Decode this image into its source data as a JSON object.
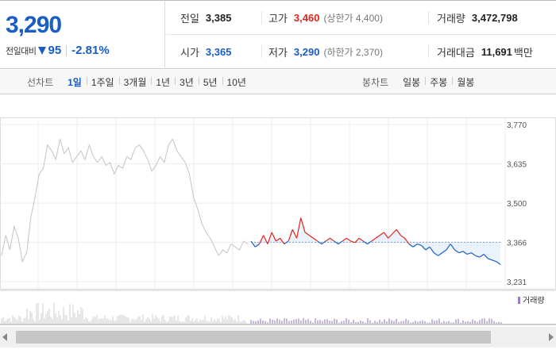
{
  "price": {
    "current": "3,290",
    "diff_label": "전일대비",
    "diff_value": "95",
    "diff_rate": "-2.81%"
  },
  "info": {
    "prev_close": {
      "label": "전일",
      "value": "3,385"
    },
    "open": {
      "label": "시가",
      "value": "3,365"
    },
    "high": {
      "label": "고가",
      "value": "3,460",
      "sub": "(상한가 4,400)"
    },
    "low": {
      "label": "저가",
      "value": "3,290",
      "sub": "(하한가 2,370)"
    },
    "volume": {
      "label": "거래량",
      "value": "3,472,798"
    },
    "amount": {
      "label": "거래대금",
      "value": "11,691",
      "unit": "백만"
    }
  },
  "line_tabs": {
    "title": "선차트",
    "items": [
      "1일",
      "1주일",
      "3개월",
      "1년",
      "3년",
      "5년",
      "10년"
    ],
    "active": "1일"
  },
  "candle_tabs": {
    "title": "봉차트",
    "items": [
      "일봉",
      "주봉",
      "월봉"
    ]
  },
  "colors": {
    "up": "#e0261b",
    "down": "#1a5dc4",
    "prev": "#c4c4c4"
  },
  "chart_data": {
    "type": "line",
    "y_ticks": [
      "3,770",
      "3,635",
      "3,500",
      "3,366",
      "3,231"
    ],
    "ylim": [
      3231,
      3770
    ],
    "reference_value": 3366,
    "volume_label": "거래량",
    "prev_day_series": [
      3320,
      3390,
      3340,
      3420,
      3380,
      3300,
      3330,
      3450,
      3520,
      3600,
      3620,
      3700,
      3680,
      3650,
      3720,
      3670,
      3690,
      3640,
      3660,
      3680,
      3650,
      3700,
      3660,
      3640,
      3660,
      3630,
      3640,
      3600,
      3630,
      3620,
      3660,
      3650,
      3690,
      3700,
      3680,
      3650,
      3610,
      3630,
      3660,
      3640,
      3700,
      3720,
      3680,
      3660,
      3640,
      3600,
      3520,
      3480,
      3430,
      3400,
      3380,
      3350,
      3320,
      3340,
      3330,
      3360,
      3350,
      3340,
      3370,
      3360
    ],
    "today_series": [
      3370,
      3350,
      3360,
      3390,
      3360,
      3400,
      3370,
      3380,
      3360,
      3370,
      3410,
      3380,
      3450,
      3400,
      3390,
      3380,
      3370,
      3360,
      3370,
      3380,
      3370,
      3360,
      3370,
      3380,
      3370,
      3365,
      3380,
      3370,
      3360,
      3370,
      3380,
      3390,
      3400,
      3380,
      3395,
      3410,
      3390,
      3380,
      3360,
      3350,
      3360,
      3355,
      3340,
      3350,
      3330,
      3320,
      3330,
      3340,
      3360,
      3340,
      3330,
      3335,
      3325,
      3330,
      3320,
      3315,
      3325,
      3310,
      3305,
      3300,
      3290
    ]
  }
}
